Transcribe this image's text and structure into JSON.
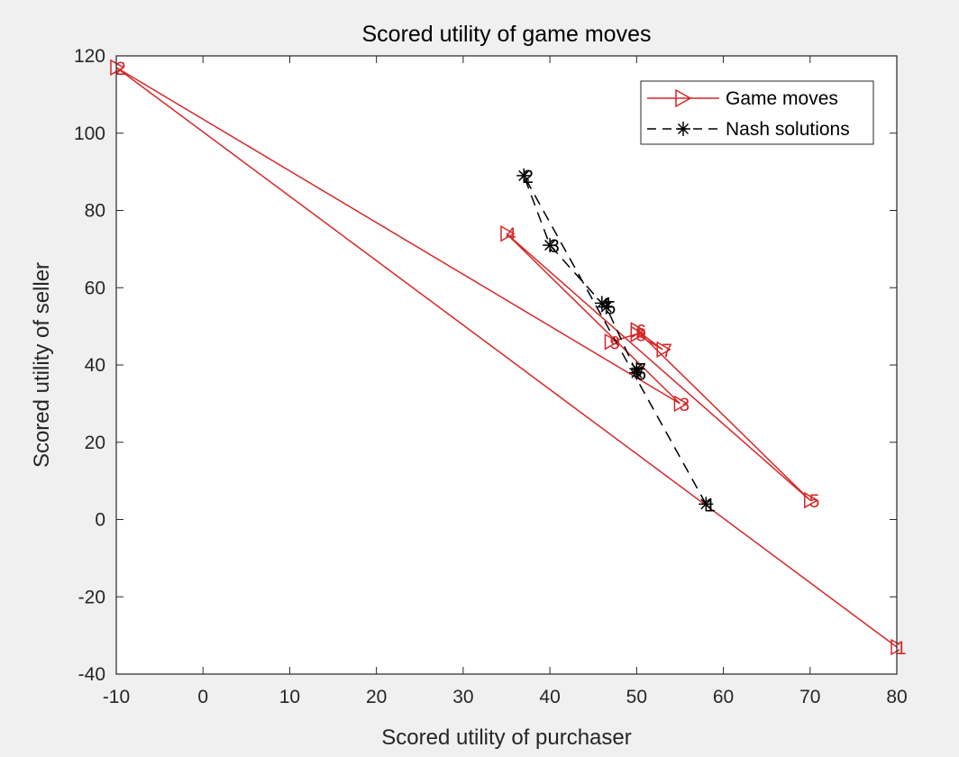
{
  "chart_data": {
    "type": "line",
    "title": "Scored utility of game moves",
    "xlabel": "Scored utility of purchaser",
    "ylabel": "Scored utility of seller",
    "xlim": [
      -10,
      80
    ],
    "ylim": [
      -40,
      120
    ],
    "xticks": [
      -10,
      0,
      10,
      20,
      30,
      40,
      50,
      60,
      70,
      80
    ],
    "yticks": [
      -40,
      -20,
      0,
      20,
      40,
      60,
      80,
      100,
      120
    ],
    "grid": false,
    "legend_position": "top-right",
    "series": [
      {
        "name": "Game moves",
        "color": "#d62728",
        "marker": "triangle-right",
        "linestyle": "solid",
        "points": [
          {
            "label": "1",
            "x": 80,
            "y": -33
          },
          {
            "label": "2",
            "x": -10,
            "y": 117
          },
          {
            "label": "3",
            "x": 55,
            "y": 30
          },
          {
            "label": "4",
            "x": 35,
            "y": 74
          },
          {
            "label": "5",
            "x": 70,
            "y": 5
          },
          {
            "label": "6",
            "x": 50,
            "y": 49
          },
          {
            "label": "7",
            "x": 53,
            "y": 44
          },
          {
            "label": "8",
            "x": 50,
            "y": 48
          },
          {
            "label": "9",
            "x": 47,
            "y": 46
          }
        ]
      },
      {
        "name": "Nash solutions",
        "color": "#000000",
        "marker": "asterisk",
        "linestyle": "dashed",
        "points": [
          {
            "label": "1",
            "x": 58,
            "y": 4
          },
          {
            "label": "2",
            "x": 37,
            "y": 89
          },
          {
            "label": "3",
            "x": 40,
            "y": 71
          },
          {
            "label": "4",
            "x": 46,
            "y": 56
          },
          {
            "label": "5",
            "x": 46.5,
            "y": 55
          },
          {
            "label": "6",
            "x": 50,
            "y": 38
          },
          {
            "label": "7",
            "x": 50,
            "y": 39
          }
        ]
      }
    ]
  }
}
